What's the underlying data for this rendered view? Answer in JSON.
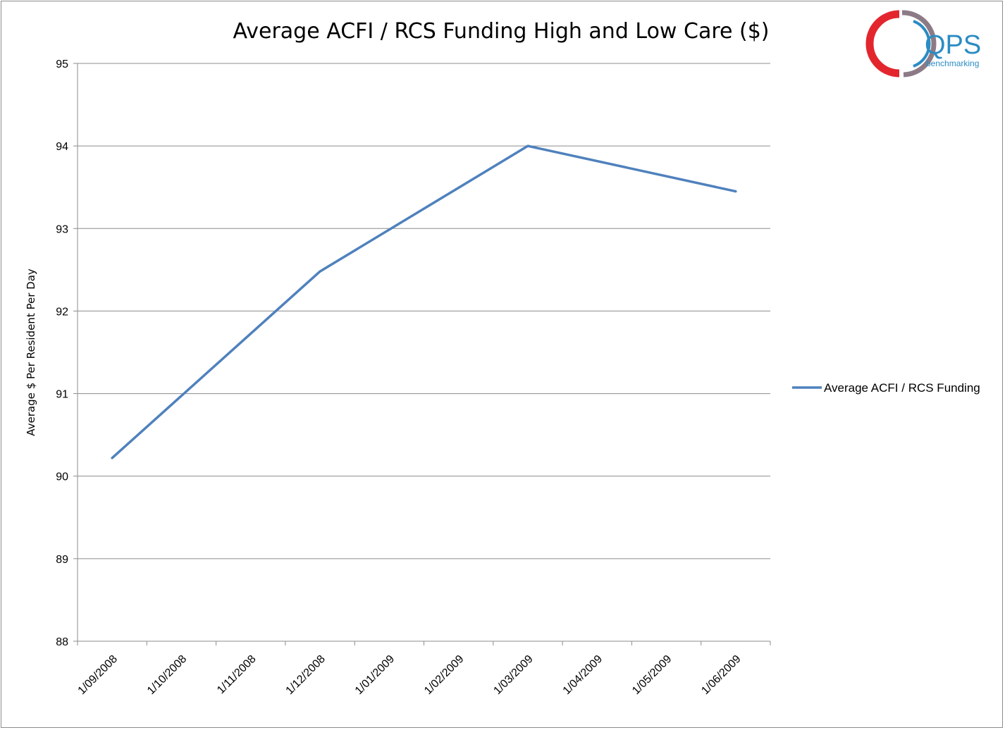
{
  "chart_data": {
    "type": "line",
    "title": "Average ACFI / RCS Funding High and Low Care ($)",
    "ylabel": "Average $ Per Resident Per Day",
    "xlabel": "",
    "ylim": [
      88,
      95
    ],
    "yticks": [
      88,
      89,
      90,
      91,
      92,
      93,
      94,
      95
    ],
    "grid": true,
    "legend_position": "right",
    "categories": [
      "1/09/2008",
      "1/10/2008",
      "1/11/2008",
      "1/12/2008",
      "1/01/2009",
      "1/02/2009",
      "1/03/2009",
      "1/04/2009",
      "1/05/2009",
      "1/06/2009"
    ],
    "series": [
      {
        "name": "Average ACFI / RCS Funding",
        "color": "#4f81bd",
        "points": [
          {
            "x": "1/09/2008",
            "y": 90.22
          },
          {
            "x": "1/12/2008",
            "y": 92.48
          },
          {
            "x": "1/03/2009",
            "y": 94.0
          },
          {
            "x": "1/06/2009",
            "y": 93.45
          }
        ]
      }
    ]
  },
  "logo": {
    "text": "QPS",
    "subtext": "benchmarking",
    "colors": {
      "red": "#e3262e",
      "gray": "#8c7b86",
      "blue": "#2b8cc4"
    }
  }
}
